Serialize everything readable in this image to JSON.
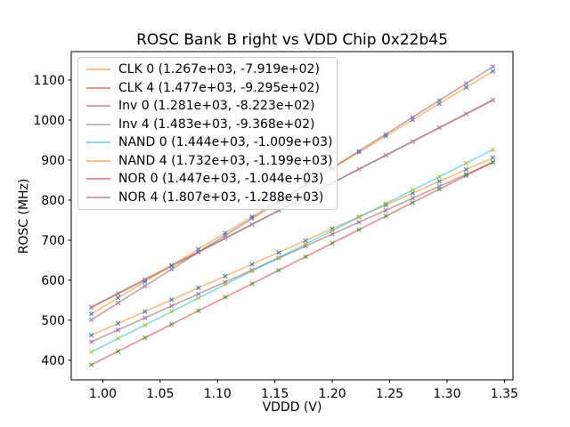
{
  "figure": {
    "background": "#ffffff"
  },
  "chart_data": {
    "type": "scatter",
    "title": "ROSC Bank B right vs VDD Chip 0x22b45",
    "xlabel": "VDDD (V)",
    "ylabel": "ROSC (MHz)",
    "xlim": [
      0.9725,
      1.3575
    ],
    "ylim": [
      351,
      1171
    ],
    "xticks": [
      1.0,
      1.05,
      1.1,
      1.15,
      1.2,
      1.25,
      1.3,
      1.35
    ],
    "yticks": [
      400,
      500,
      600,
      700,
      800,
      900,
      1000,
      1100
    ],
    "grid": false,
    "legend_position": "upper left",
    "x": [
      0.99,
      1.0133,
      1.0367,
      1.06,
      1.0833,
      1.1067,
      1.13,
      1.1533,
      1.1767,
      1.2,
      1.2233,
      1.2467,
      1.27,
      1.2933,
      1.3167,
      1.34
    ],
    "series": [
      {
        "name": "CLK 0",
        "label": "CLK 0 (1.267e+03, -7.919e+02)",
        "slope": 1267,
        "intercept": -791.9,
        "line_color": "rgba(255,127,14,0.5)",
        "marker_color": "#1f77b4",
        "y": [
          462.4,
          492.0,
          521.6,
          551.1,
          580.7,
          610.3,
          639.8,
          669.4,
          698.9,
          728.5,
          758.1,
          787.6,
          817.2,
          846.8,
          876.3,
          905.9
        ]
      },
      {
        "name": "CLK 4",
        "label": "CLK 4 (1.477e+03, -9.295e+02)",
        "slope": 1477,
        "intercept": -929.5,
        "line_color": "rgba(214,39,40,0.5)",
        "marker_color": "#2ca02c",
        "y": [
          532.7,
          567.2,
          601.7,
          636.1,
          670.6,
          705.0,
          739.5,
          774.0,
          808.4,
          842.9,
          877.4,
          911.8,
          946.3,
          980.8,
          1015.2,
          1049.7
        ]
      },
      {
        "name": "Inv 0",
        "label": "Inv 0 (1.281e+03, -8.223e+02)",
        "slope": 1281,
        "intercept": -822.3,
        "line_color": "rgba(140,86,75,0.5)",
        "marker_color": "#9467bd",
        "y": [
          445.9,
          475.8,
          505.7,
          535.6,
          565.5,
          595.3,
          625.2,
          655.1,
          685.0,
          714.9,
          744.8,
          774.7,
          804.6,
          834.5,
          864.4,
          894.2
        ]
      },
      {
        "name": "Inv 4",
        "label": "Inv 4 (1.483e+03, -9.368e+02)",
        "slope": 1483,
        "intercept": -936.8,
        "line_color": "rgba(127,127,127,0.5)",
        "marker_color": "#e377c2",
        "y": [
          531.4,
          566.0,
          600.6,
          635.2,
          669.8,
          704.4,
          739.0,
          773.6,
          808.2,
          842.8,
          877.4,
          912.0,
          946.6,
          981.2,
          1015.8,
          1050.4
        ]
      },
      {
        "name": "NAND 0",
        "label": "NAND 0 (1.444e+03, -1.009e+03)",
        "slope": 1444,
        "intercept": -1009,
        "line_color": "rgba(23,190,207,0.5)",
        "marker_color": "#bcbd22",
        "y": [
          420.6,
          454.3,
          487.9,
          521.6,
          555.3,
          589.0,
          622.7,
          656.4,
          690.1,
          723.8,
          757.5,
          791.2,
          824.9,
          858.6,
          892.3,
          926.0
        ]
      },
      {
        "name": "NAND 4",
        "label": "NAND 4 (1.732e+03, -1.199e+03)",
        "slope": 1732,
        "intercept": -1199,
        "line_color": "rgba(255,127,14,0.5)",
        "marker_color": "#1f77b4",
        "y": [
          515.7,
          556.1,
          596.5,
          636.9,
          677.3,
          717.7,
          758.2,
          798.6,
          839.0,
          879.4,
          919.8,
          960.2,
          1000.6,
          1041.1,
          1081.5,
          1121.9
        ]
      },
      {
        "name": "NOR 0",
        "label": "NOR 0 (1.447e+03, -1.044e+03)",
        "slope": 1447,
        "intercept": -1044,
        "line_color": "rgba(214,39,40,0.5)",
        "marker_color": "#2ca02c",
        "y": [
          388.5,
          422.3,
          456.1,
          489.8,
          523.6,
          557.3,
          591.1,
          624.9,
          658.6,
          692.4,
          726.2,
          759.9,
          793.7,
          827.5,
          861.2,
          895.0
        ]
      },
      {
        "name": "NOR 4",
        "label": "NOR 4 (1.807e+03, -1.288e+03)",
        "slope": 1807,
        "intercept": -1288,
        "line_color": "rgba(140,86,75,0.5)",
        "marker_color": "#9467bd",
        "y": [
          500.9,
          543.1,
          585.3,
          627.4,
          669.6,
          711.7,
          753.9,
          796.1,
          838.2,
          880.4,
          922.6,
          964.7,
          1006.9,
          1049.1,
          1091.2,
          1133.4
        ]
      }
    ]
  }
}
